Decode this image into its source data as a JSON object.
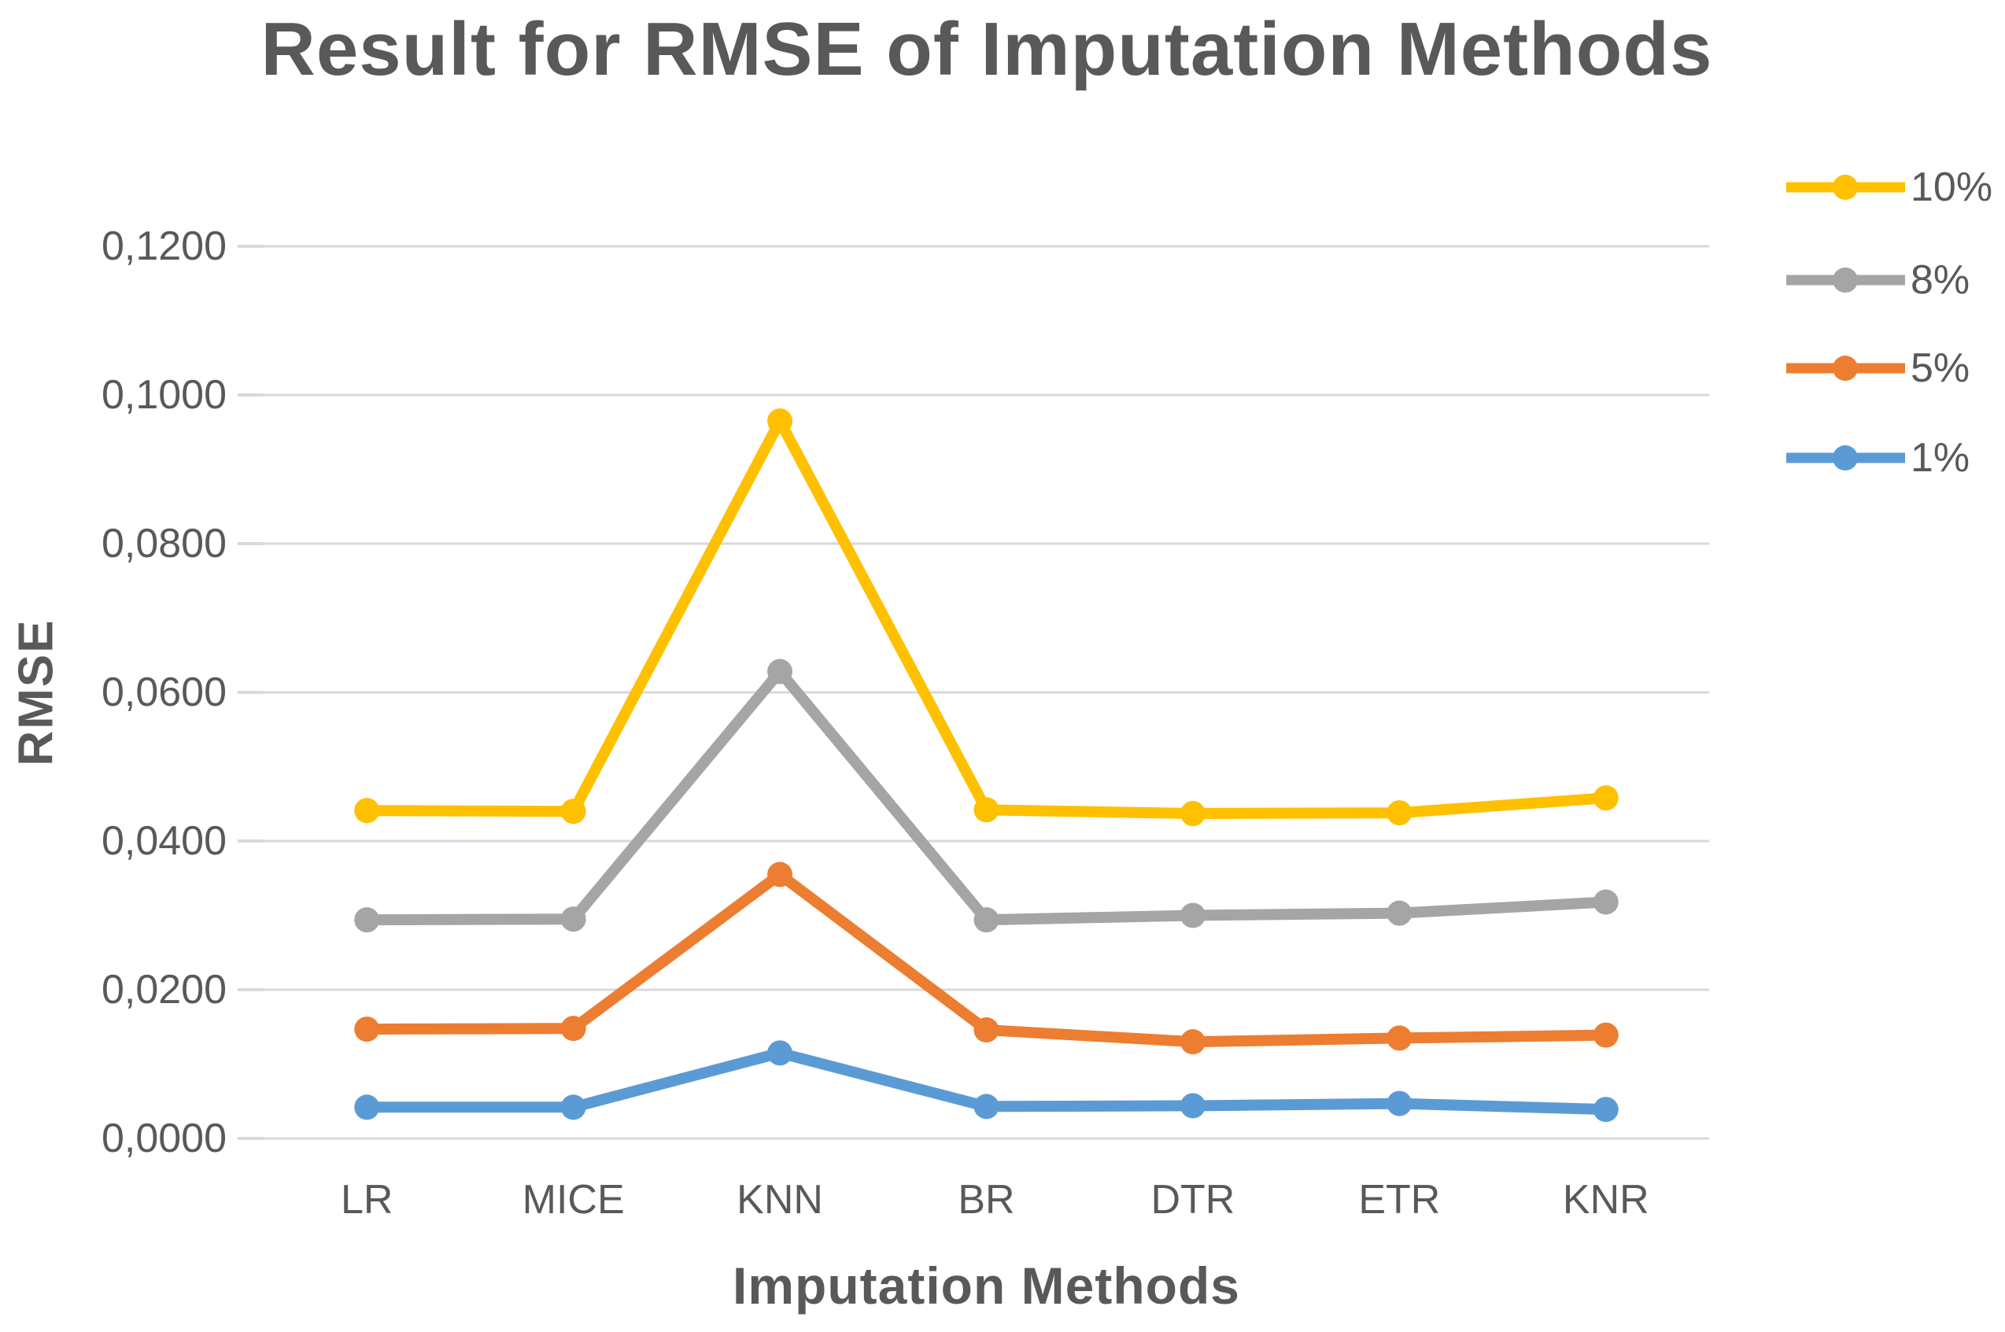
{
  "chart_data": {
    "type": "line",
    "title": "Result for RMSE of Imputation Methods",
    "xlabel": "Imputation Methods",
    "ylabel": "RMSE",
    "categories": [
      "LR",
      "MICE",
      "KNN",
      "BR",
      "DTR",
      "ETR",
      "KNR"
    ],
    "series": [
      {
        "name": "10%",
        "color": "#FFC000",
        "values": [
          0.0441,
          0.044,
          0.0965,
          0.0442,
          0.0437,
          0.0438,
          0.0458
        ]
      },
      {
        "name": "8%",
        "color": "#A5A5A5",
        "values": [
          0.0294,
          0.0295,
          0.0628,
          0.0294,
          0.03,
          0.0303,
          0.0318
        ]
      },
      {
        "name": "5%",
        "color": "#ED7D31",
        "values": [
          0.0147,
          0.0148,
          0.0355,
          0.0146,
          0.013,
          0.0135,
          0.0139
        ]
      },
      {
        "name": "1%",
        "color": "#5B9BD5",
        "values": [
          0.0042,
          0.0042,
          0.0115,
          0.0043,
          0.0044,
          0.0047,
          0.0039
        ]
      }
    ],
    "ylim": [
      0,
      0.12
    ],
    "ytick_labels": [
      "0,0000",
      "0,0200",
      "0,0400",
      "0,0600",
      "0,0800",
      "0,1000",
      "0,1200"
    ],
    "decimal_separator": ",",
    "grid": true,
    "legend_position": "right",
    "legend_labels": [
      "10%",
      "8%",
      "5%",
      "1%"
    ],
    "text_color": "#595959",
    "gridline_color": "#D9D9D9"
  }
}
